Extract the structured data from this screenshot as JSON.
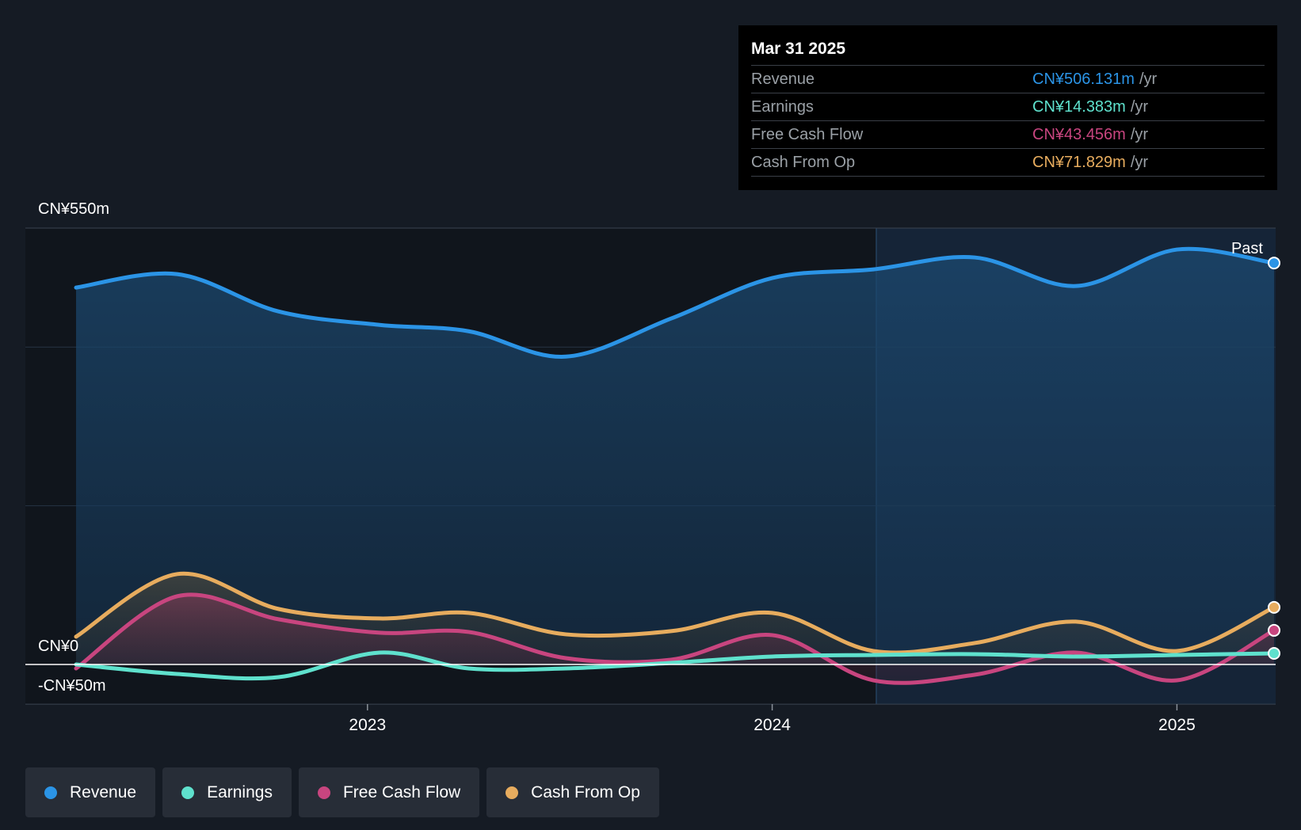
{
  "chart_data": {
    "type": "line",
    "title": "",
    "y_top_label": "CN¥550m",
    "y_zero_label": "CN¥0",
    "y_bottom_label": "-CN¥50m",
    "ylim": [
      -50,
      550
    ],
    "x_ticks": [
      {
        "label": "2023",
        "year": 2023.0
      },
      {
        "label": "2024",
        "year": 2024.0
      },
      {
        "label": "2025",
        "year": 2025.0
      }
    ],
    "past_label": "Past",
    "x": [
      2022.28,
      2022.53,
      2022.78,
      2023.03,
      2023.25,
      2023.49,
      2023.75,
      2024.0,
      2024.25,
      2024.5,
      2024.75,
      2025.0,
      2025.24
    ],
    "series": [
      {
        "name": "Revenue",
        "color": "#2b94e6",
        "values": [
          475,
          492,
          445,
          428,
          420,
          388,
          436,
          487,
          498,
          513,
          477,
          523,
          506
        ]
      },
      {
        "name": "Earnings",
        "color": "#5fe1cd",
        "values": [
          0,
          -12,
          -16,
          15,
          -5,
          -5,
          2,
          10,
          12,
          13,
          10,
          12,
          14
        ]
      },
      {
        "name": "Free Cash Flow",
        "color": "#c8457f",
        "values": [
          -5,
          86,
          57,
          40,
          41,
          8,
          6,
          37,
          -20,
          -13,
          15,
          -20,
          43
        ]
      },
      {
        "name": "Cash From Op",
        "color": "#e7ac5e",
        "values": [
          35,
          114,
          70,
          58,
          65,
          38,
          42,
          65,
          17,
          27,
          54,
          17,
          72
        ]
      }
    ]
  },
  "tooltip": {
    "date": "Mar 31 2025",
    "unit": "/yr",
    "rows": [
      {
        "label": "Revenue",
        "value": "CN¥506.131m",
        "color": "#2b94e6"
      },
      {
        "label": "Earnings",
        "value": "CN¥14.383m",
        "color": "#5fe1cd"
      },
      {
        "label": "Free Cash Flow",
        "value": "CN¥43.456m",
        "color": "#c8457f"
      },
      {
        "label": "Cash From Op",
        "value": "CN¥71.829m",
        "color": "#e7ac5e"
      }
    ]
  },
  "legend": [
    {
      "label": "Revenue",
      "color": "#2b94e6"
    },
    {
      "label": "Earnings",
      "color": "#5fe1cd"
    },
    {
      "label": "Free Cash Flow",
      "color": "#c8457f"
    },
    {
      "label": "Cash From Op",
      "color": "#e7ac5e"
    }
  ]
}
